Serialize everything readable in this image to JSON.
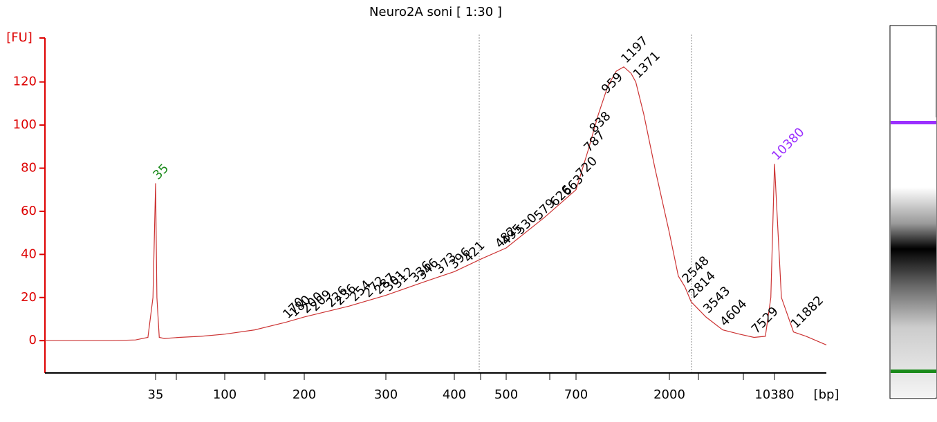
{
  "chart_data": {
    "type": "line",
    "title": "Neuro2A soni  [ 1:30 ]",
    "y_label": "[FU]",
    "x_label": "[bp]",
    "ylim": [
      -15,
      142
    ],
    "yticks": [
      0,
      20,
      40,
      60,
      80,
      100,
      120
    ],
    "xlim": [
      15,
      15000
    ],
    "xticks": [
      35,
      100,
      200,
      300,
      400,
      500,
      700,
      2000,
      10380
    ],
    "axis_color": "#dd0000",
    "series": [
      {
        "name": "Neuro2A soni",
        "color": "#cc3333",
        "x": [
          15,
          25,
          30,
          33,
          34.3,
          35,
          35.7,
          37,
          40,
          50,
          70,
          100,
          130,
          170,
          200,
          250,
          300,
          350,
          400,
          450,
          500,
          600,
          700,
          800,
          900,
          1000,
          1100,
          1197,
          1300,
          1371,
          1500,
          1700,
          2000,
          2300,
          2548,
          2814,
          3543,
          4604,
          6000,
          7529,
          9000,
          9800,
          10380,
          10900,
          11882,
          13000,
          15000
        ],
        "values": [
          0,
          0,
          0.3,
          1.5,
          20,
          73,
          20,
          1.5,
          1,
          1.5,
          2,
          3,
          5,
          8.5,
          11,
          16,
          21,
          27,
          32,
          38,
          43,
          57,
          70,
          88,
          105,
          118,
          125,
          127,
          124,
          120,
          105,
          80,
          50,
          30,
          25,
          18,
          11,
          5,
          3,
          1.5,
          2,
          20,
          82,
          20,
          4,
          2,
          -2
        ]
      }
    ],
    "peaks": [
      170,
      180,
      200,
      209,
      226,
      236,
      254,
      272,
      287,
      301,
      312,
      336,
      346,
      373,
      396,
      421,
      482,
      495,
      530,
      579,
      626,
      663,
      720,
      787,
      838,
      959,
      1197,
      1371,
      2548,
      2814,
      3543,
      4604,
      7529,
      11882
    ],
    "lower_marker": {
      "value": 35,
      "color": "#1a8a1a"
    },
    "upper_marker": {
      "value": 10380,
      "color": "#9b30ff"
    }
  }
}
